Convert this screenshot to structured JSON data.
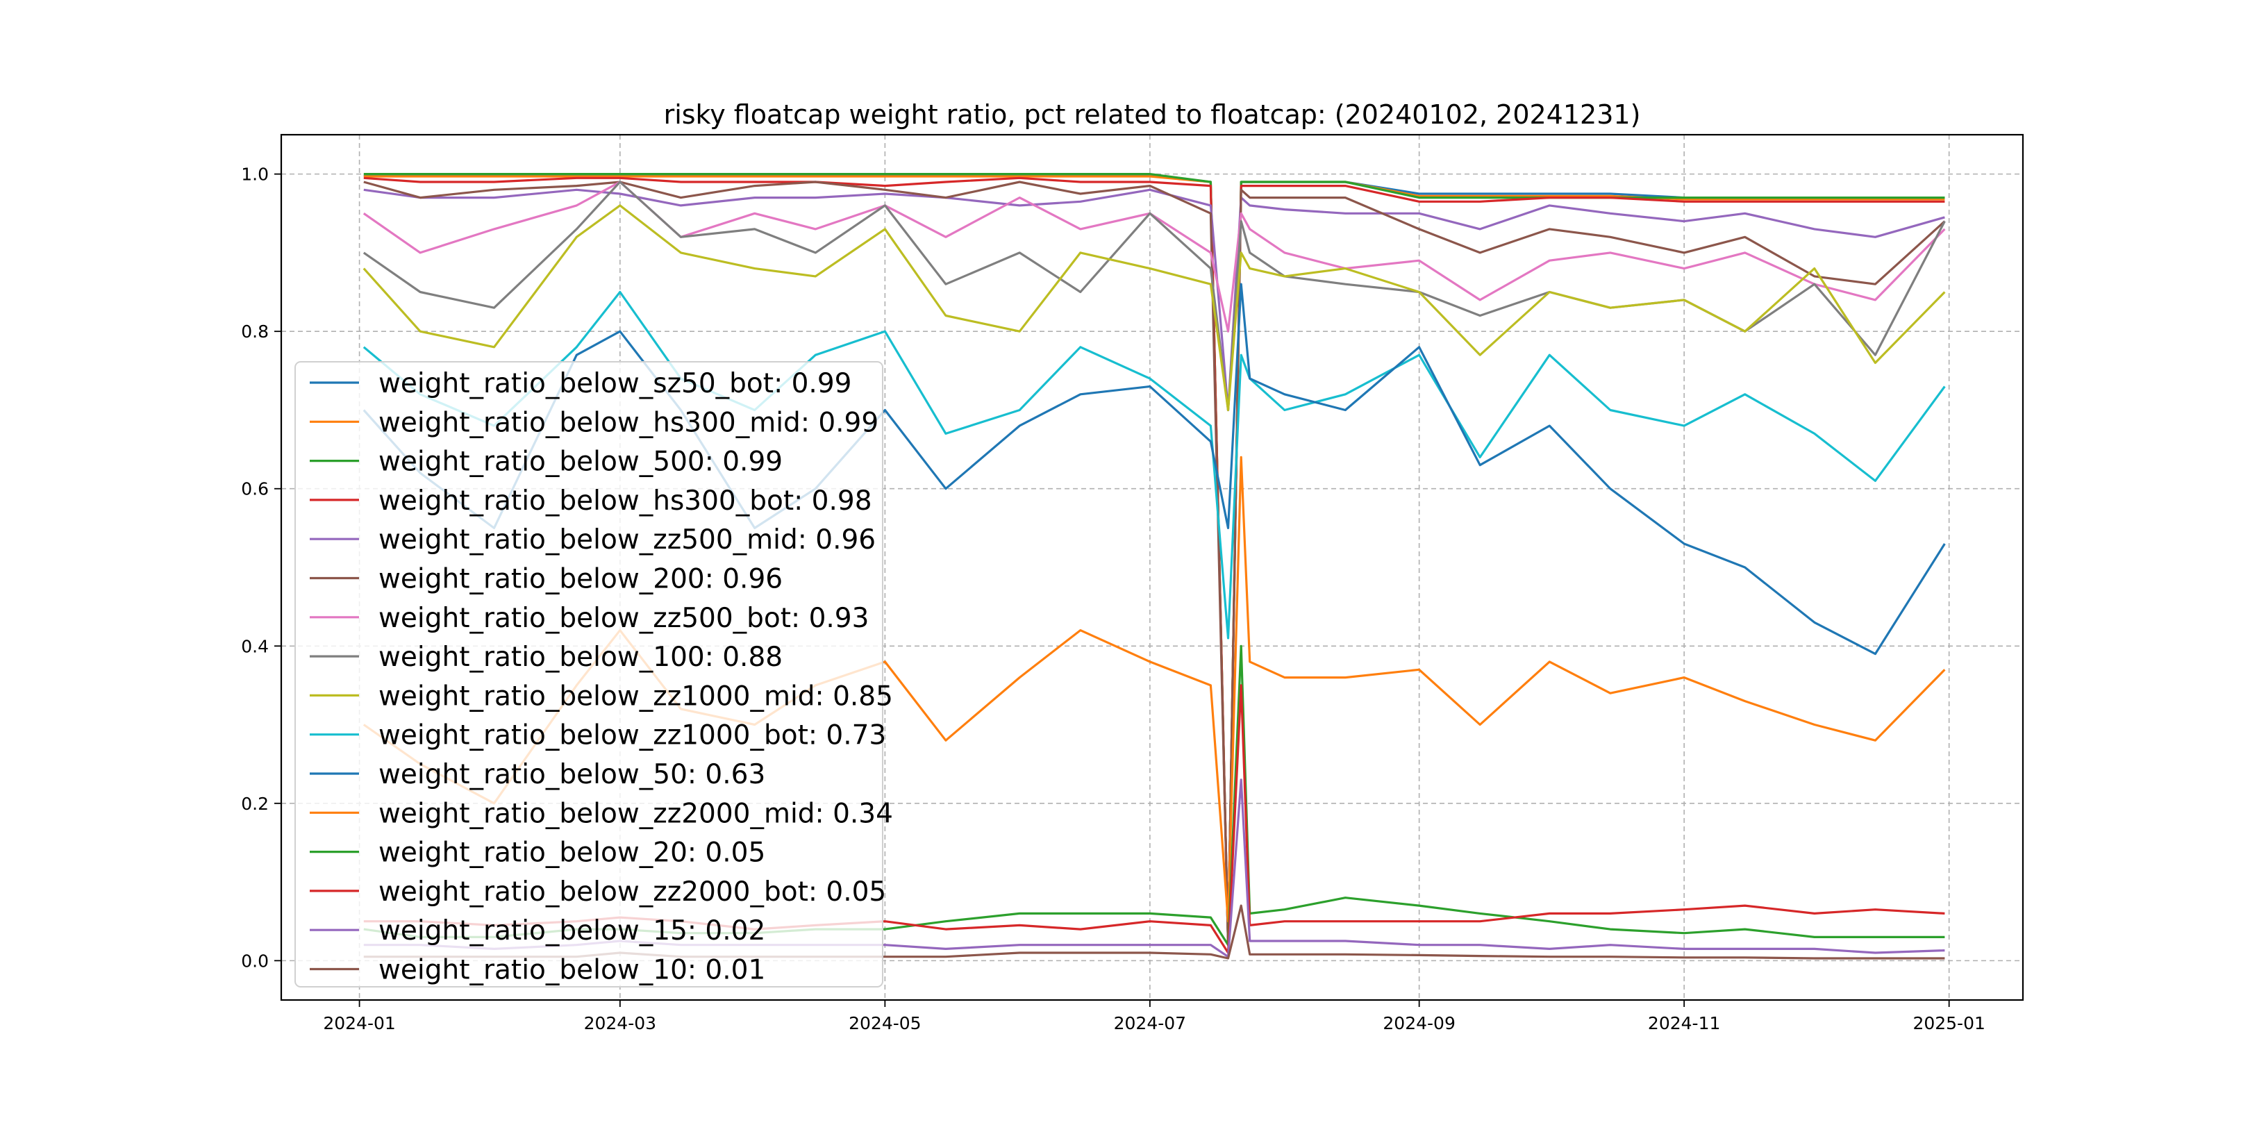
{
  "chart_data": {
    "type": "line",
    "title": "risky floatcap weight ratio, pct related to floatcap: (20240102, 20241231)",
    "xlabel": "",
    "ylabel": "",
    "ylim": [
      -0.05,
      1.05
    ],
    "xlim": [
      "2023-12-14",
      "2025-01-18"
    ],
    "grid": true,
    "legend_placement": "lower-left",
    "x_ticks": [
      "2024-01",
      "2024-03",
      "2024-05",
      "2024-07",
      "2024-09",
      "2024-11",
      "2025-01"
    ],
    "y_ticks": [
      "0.0",
      "0.2",
      "0.4",
      "0.6",
      "0.8",
      "1.0"
    ],
    "x": [
      "2024-01-02",
      "2024-01-15",
      "2024-02-01",
      "2024-02-20",
      "2024-03-01",
      "2024-03-15",
      "2024-04-01",
      "2024-04-15",
      "2024-05-01",
      "2024-05-15",
      "2024-06-01",
      "2024-06-15",
      "2024-07-01",
      "2024-07-15",
      "2024-07-19",
      "2024-07-22",
      "2024-07-24",
      "2024-08-01",
      "2024-08-15",
      "2024-09-01",
      "2024-09-15",
      "2024-10-01",
      "2024-10-15",
      "2024-11-01",
      "2024-11-15",
      "2024-12-01",
      "2024-12-15",
      "2024-12-31"
    ],
    "series": [
      {
        "name": "weight_ratio_below_sz50_bot: 0.99",
        "color": "#1f77b4",
        "values": [
          0.998,
          0.998,
          0.998,
          0.998,
          0.998,
          0.998,
          0.998,
          0.998,
          0.998,
          0.998,
          0.998,
          0.998,
          0.998,
          0.99,
          0.02,
          0.99,
          0.99,
          0.99,
          0.99,
          0.975,
          0.975,
          0.975,
          0.975,
          0.97,
          0.97,
          0.97,
          0.97,
          0.97
        ]
      },
      {
        "name": "weight_ratio_below_hs300_mid: 0.99",
        "color": "#ff7f0e",
        "values": [
          0.997,
          0.997,
          0.997,
          0.997,
          0.997,
          0.997,
          0.997,
          0.997,
          0.997,
          0.997,
          0.997,
          0.997,
          0.997,
          0.99,
          0.02,
          0.99,
          0.99,
          0.99,
          0.99,
          0.972,
          0.972,
          0.972,
          0.972,
          0.968,
          0.968,
          0.968,
          0.968,
          0.968
        ]
      },
      {
        "name": "weight_ratio_below_500: 0.99",
        "color": "#2ca02c",
        "values": [
          1.0,
          1.0,
          1.0,
          1.0,
          1.0,
          1.0,
          1.0,
          1.0,
          1.0,
          1.0,
          1.0,
          1.0,
          1.0,
          0.99,
          0.02,
          0.99,
          0.99,
          0.99,
          0.99,
          0.97,
          0.97,
          0.97,
          0.97,
          0.97,
          0.97,
          0.97,
          0.97,
          0.97
        ]
      },
      {
        "name": "weight_ratio_below_hs300_bot: 0.98",
        "color": "#d62728",
        "values": [
          0.995,
          0.99,
          0.99,
          0.995,
          0.995,
          0.99,
          0.99,
          0.99,
          0.985,
          0.99,
          0.995,
          0.99,
          0.99,
          0.985,
          0.02,
          0.985,
          0.985,
          0.985,
          0.985,
          0.965,
          0.965,
          0.97,
          0.97,
          0.965,
          0.965,
          0.965,
          0.965,
          0.965
        ]
      },
      {
        "name": "weight_ratio_below_zz500_mid: 0.96",
        "color": "#9467bd",
        "values": [
          0.98,
          0.97,
          0.97,
          0.98,
          0.975,
          0.96,
          0.97,
          0.97,
          0.975,
          0.97,
          0.96,
          0.965,
          0.98,
          0.96,
          0.7,
          0.97,
          0.96,
          0.955,
          0.95,
          0.95,
          0.93,
          0.96,
          0.95,
          0.94,
          0.95,
          0.93,
          0.92,
          0.945
        ]
      },
      {
        "name": "weight_ratio_below_200: 0.96",
        "color": "#8c564b",
        "values": [
          0.99,
          0.97,
          0.98,
          0.985,
          0.99,
          0.97,
          0.985,
          0.99,
          0.98,
          0.97,
          0.99,
          0.975,
          0.985,
          0.95,
          0.02,
          0.98,
          0.97,
          0.97,
          0.97,
          0.93,
          0.9,
          0.93,
          0.92,
          0.9,
          0.92,
          0.87,
          0.86,
          0.94
        ]
      },
      {
        "name": "weight_ratio_below_zz500_bot: 0.93",
        "color": "#e377c2",
        "values": [
          0.95,
          0.9,
          0.93,
          0.96,
          0.99,
          0.92,
          0.95,
          0.93,
          0.96,
          0.92,
          0.97,
          0.93,
          0.95,
          0.9,
          0.8,
          0.95,
          0.93,
          0.9,
          0.88,
          0.89,
          0.84,
          0.89,
          0.9,
          0.88,
          0.9,
          0.86,
          0.84,
          0.93
        ]
      },
      {
        "name": "weight_ratio_below_100: 0.88",
        "color": "#7f7f7f",
        "values": [
          0.9,
          0.85,
          0.83,
          0.93,
          0.99,
          0.92,
          0.93,
          0.9,
          0.96,
          0.86,
          0.9,
          0.85,
          0.95,
          0.88,
          0.7,
          0.94,
          0.9,
          0.87,
          0.86,
          0.85,
          0.82,
          0.85,
          0.83,
          0.84,
          0.8,
          0.86,
          0.77,
          0.94
        ]
      },
      {
        "name": "weight_ratio_below_zz1000_mid: 0.85",
        "color": "#bcbd22",
        "values": [
          0.88,
          0.8,
          0.78,
          0.92,
          0.96,
          0.9,
          0.88,
          0.87,
          0.93,
          0.82,
          0.8,
          0.9,
          0.88,
          0.86,
          0.7,
          0.9,
          0.88,
          0.87,
          0.88,
          0.85,
          0.77,
          0.85,
          0.83,
          0.84,
          0.8,
          0.88,
          0.76,
          0.85
        ]
      },
      {
        "name": "weight_ratio_below_zz1000_bot: 0.73",
        "color": "#17becf",
        "values": [
          0.78,
          0.72,
          0.68,
          0.78,
          0.85,
          0.74,
          0.7,
          0.77,
          0.8,
          0.67,
          0.7,
          0.78,
          0.74,
          0.68,
          0.41,
          0.77,
          0.74,
          0.7,
          0.72,
          0.77,
          0.64,
          0.77,
          0.7,
          0.68,
          0.72,
          0.67,
          0.61,
          0.73
        ]
      },
      {
        "name": "weight_ratio_below_50: 0.63",
        "color": "#1f77b4",
        "values": [
          0.7,
          0.62,
          0.55,
          0.77,
          0.8,
          0.7,
          0.55,
          0.6,
          0.7,
          0.6,
          0.68,
          0.72,
          0.73,
          0.66,
          0.55,
          0.86,
          0.74,
          0.72,
          0.7,
          0.78,
          0.63,
          0.68,
          0.6,
          0.53,
          0.5,
          0.43,
          0.39,
          0.53
        ]
      },
      {
        "name": "weight_ratio_below_zz2000_mid: 0.34",
        "color": "#ff7f0e",
        "values": [
          0.3,
          0.25,
          0.2,
          0.35,
          0.42,
          0.32,
          0.3,
          0.35,
          0.38,
          0.28,
          0.36,
          0.42,
          0.38,
          0.35,
          0.05,
          0.64,
          0.38,
          0.36,
          0.36,
          0.37,
          0.3,
          0.38,
          0.34,
          0.36,
          0.33,
          0.3,
          0.28,
          0.37
        ]
      },
      {
        "name": "weight_ratio_below_20: 0.05",
        "color": "#2ca02c",
        "values": [
          0.04,
          0.03,
          0.03,
          0.04,
          0.04,
          0.035,
          0.035,
          0.04,
          0.04,
          0.05,
          0.06,
          0.06,
          0.06,
          0.055,
          0.02,
          0.4,
          0.06,
          0.065,
          0.08,
          0.07,
          0.06,
          0.05,
          0.04,
          0.035,
          0.04,
          0.03,
          0.03,
          0.03
        ]
      },
      {
        "name": "weight_ratio_below_zz2000_bot: 0.05",
        "color": "#d62728",
        "values": [
          0.05,
          0.05,
          0.045,
          0.05,
          0.055,
          0.05,
          0.04,
          0.045,
          0.05,
          0.04,
          0.045,
          0.04,
          0.05,
          0.045,
          0.01,
          0.35,
          0.045,
          0.05,
          0.05,
          0.05,
          0.05,
          0.06,
          0.06,
          0.065,
          0.07,
          0.06,
          0.065,
          0.06
        ]
      },
      {
        "name": "weight_ratio_below_15: 0.02",
        "color": "#9467bd",
        "values": [
          0.02,
          0.02,
          0.015,
          0.02,
          0.025,
          0.02,
          0.02,
          0.02,
          0.02,
          0.015,
          0.02,
          0.02,
          0.02,
          0.02,
          0.005,
          0.23,
          0.025,
          0.025,
          0.025,
          0.02,
          0.02,
          0.015,
          0.02,
          0.015,
          0.015,
          0.015,
          0.01,
          0.013
        ]
      },
      {
        "name": "weight_ratio_below_10: 0.01",
        "color": "#8c564b",
        "values": [
          0.005,
          0.005,
          0.005,
          0.005,
          0.01,
          0.005,
          0.005,
          0.005,
          0.005,
          0.005,
          0.01,
          0.01,
          0.01,
          0.008,
          0.003,
          0.07,
          0.008,
          0.008,
          0.008,
          0.007,
          0.006,
          0.005,
          0.005,
          0.004,
          0.004,
          0.003,
          0.003,
          0.003
        ]
      }
    ]
  }
}
